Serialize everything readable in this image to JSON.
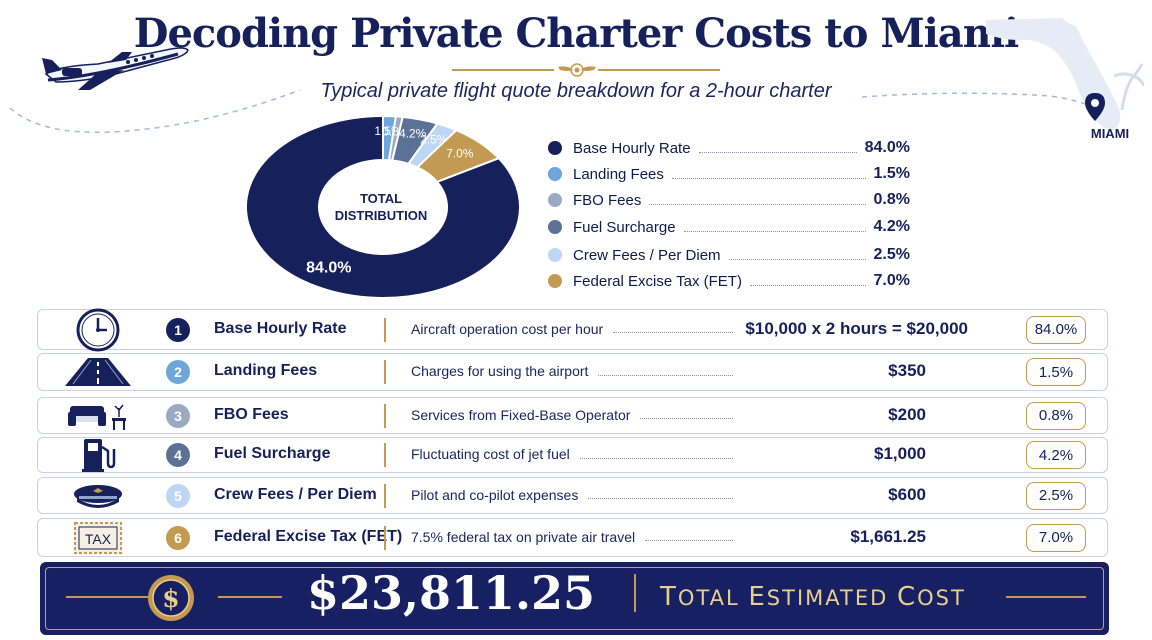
{
  "header": {
    "title": "Decoding Private Charter Costs to Miami",
    "subtitle": "Typical private flight quote breakdown for a 2-hour charter"
  },
  "map": {
    "label": "MIAMI"
  },
  "chart_data": {
    "type": "pie",
    "style": "donut",
    "center_label": "TOTAL DISTRIBUTION",
    "categories": [
      "Base Hourly Rate",
      "Landing Fees",
      "FBO Fees",
      "Fuel Surcharge",
      "Crew Fees / Per Diem",
      "Federal Excise Tax (FET)"
    ],
    "values": [
      84.0,
      1.5,
      0.8,
      4.2,
      2.5,
      7.0
    ],
    "labels": [
      "84.0%",
      "1.5%",
      "0.8%",
      "4.2%",
      "2.5%",
      "7.0%"
    ],
    "colors": [
      "#16205a",
      "#6ea6db",
      "#9aaac3",
      "#5b7296",
      "#bdd6f3",
      "#c39a52"
    ],
    "legend": "right"
  },
  "rows": [
    {
      "num": "1",
      "icon": "clock-icon",
      "name": "Base Hourly Rate",
      "desc": "Aircraft operation cost per hour",
      "amount": "$10,000 x 2 hours = $20,000",
      "pct": "84.0%"
    },
    {
      "num": "2",
      "icon": "runway-icon",
      "name": "Landing Fees",
      "desc": "Charges for using the airport",
      "amount": "$350",
      "pct": "1.5%"
    },
    {
      "num": "3",
      "icon": "armchair-icon",
      "name": "FBO Fees",
      "desc": "Services from Fixed-Base Operator",
      "amount": "$200",
      "pct": "0.8%"
    },
    {
      "num": "4",
      "icon": "fuel-pump-icon",
      "name": "Fuel Surcharge",
      "desc": "Fluctuating cost of jet fuel",
      "amount": "$1,000",
      "pct": "4.2%"
    },
    {
      "num": "5",
      "icon": "pilot-cap-icon",
      "name": "Crew Fees / Per Diem",
      "desc": "Pilot and co-pilot expenses",
      "amount": "$600",
      "pct": "2.5%"
    },
    {
      "num": "6",
      "icon": "tax-stamp-icon",
      "name": "Federal Excise Tax (FET)",
      "desc": "7.5% federal tax on private air travel",
      "amount": "$1,661.25",
      "pct": "7.0%",
      "icon_text": "TAX"
    }
  ],
  "total": {
    "amount": "$23,811.25",
    "label_first": "T",
    "label_rest1": "OTAL ",
    "label_e": "E",
    "label_rest2": "STIMATED ",
    "label_c": "C",
    "label_rest3": "OST",
    "icon": "dollar-coin-icon"
  }
}
